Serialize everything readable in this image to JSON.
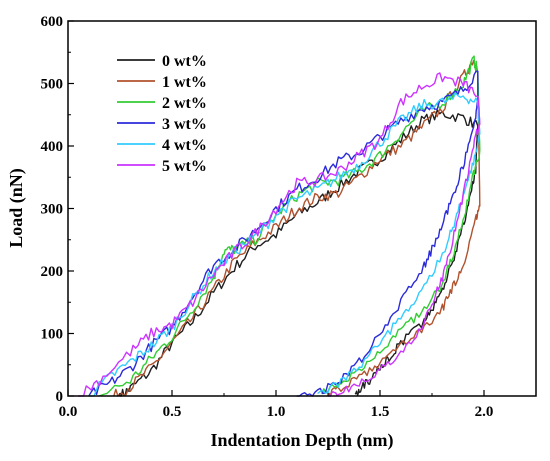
{
  "chart_data": {
    "type": "line",
    "xlabel": "Indentation Depth (nm)",
    "ylabel": "Load (nN)",
    "xlim": [
      0.0,
      2.25
    ],
    "ylim": [
      0,
      600
    ],
    "xticks": [
      "0.0",
      "0.5",
      "1.0",
      "1.5",
      "2.0"
    ],
    "yticks": [
      "0",
      "100",
      "200",
      "300",
      "400",
      "500",
      "600"
    ],
    "legend_position": "top-left",
    "grid": false,
    "series": [
      {
        "name": "0 wt%",
        "color": "#1f1f1f",
        "loading": [
          [
            0.25,
            0
          ],
          [
            0.3,
            12
          ],
          [
            0.4,
            40
          ],
          [
            0.5,
            85
          ],
          [
            0.6,
            120
          ],
          [
            0.7,
            165
          ],
          [
            0.8,
            205
          ],
          [
            0.9,
            240
          ],
          [
            1.0,
            258
          ],
          [
            1.1,
            290
          ],
          [
            1.2,
            310
          ],
          [
            1.3,
            335
          ],
          [
            1.4,
            360
          ],
          [
            1.5,
            380
          ],
          [
            1.6,
            410
          ],
          [
            1.7,
            440
          ],
          [
            1.8,
            452
          ],
          [
            1.9,
            445
          ],
          [
            1.97,
            432
          ]
        ],
        "unloading": [
          [
            1.97,
            432
          ],
          [
            1.96,
            360
          ],
          [
            1.94,
            330
          ],
          [
            1.9,
            270
          ],
          [
            1.85,
            215
          ],
          [
            1.8,
            170
          ],
          [
            1.75,
            140
          ],
          [
            1.7,
            115
          ],
          [
            1.6,
            85
          ],
          [
            1.55,
            65
          ],
          [
            1.5,
            45
          ],
          [
            1.45,
            25
          ],
          [
            1.4,
            10
          ],
          [
            1.38,
            3
          ]
        ]
      },
      {
        "name": "1 wt%",
        "color": "#b0522d",
        "loading": [
          [
            0.22,
            0
          ],
          [
            0.3,
            15
          ],
          [
            0.4,
            45
          ],
          [
            0.5,
            85
          ],
          [
            0.6,
            125
          ],
          [
            0.7,
            170
          ],
          [
            0.8,
            215
          ],
          [
            0.9,
            245
          ],
          [
            1.0,
            270
          ],
          [
            1.1,
            300
          ],
          [
            1.2,
            318
          ],
          [
            1.3,
            325
          ],
          [
            1.4,
            350
          ],
          [
            1.5,
            380
          ],
          [
            1.6,
            400
          ],
          [
            1.7,
            430
          ],
          [
            1.8,
            460
          ],
          [
            1.9,
            510
          ],
          [
            1.95,
            540
          ],
          [
            1.97,
            520
          ]
        ],
        "unloading": [
          [
            1.97,
            520
          ],
          [
            1.98,
            300
          ],
          [
            1.96,
            285
          ],
          [
            1.9,
            210
          ],
          [
            1.85,
            175
          ],
          [
            1.8,
            140
          ],
          [
            1.7,
            105
          ],
          [
            1.6,
            80
          ],
          [
            1.5,
            50
          ],
          [
            1.4,
            30
          ],
          [
            1.3,
            12
          ],
          [
            1.25,
            2
          ]
        ]
      },
      {
        "name": "2 wt%",
        "color": "#33cc33",
        "loading": [
          [
            0.15,
            0
          ],
          [
            0.3,
            25
          ],
          [
            0.4,
            60
          ],
          [
            0.5,
            95
          ],
          [
            0.6,
            140
          ],
          [
            0.7,
            190
          ],
          [
            0.75,
            232
          ],
          [
            0.8,
            235
          ],
          [
            0.9,
            250
          ],
          [
            1.0,
            290
          ],
          [
            1.1,
            320
          ],
          [
            1.2,
            340
          ],
          [
            1.3,
            345
          ],
          [
            1.4,
            360
          ],
          [
            1.5,
            385
          ],
          [
            1.6,
            420
          ],
          [
            1.7,
            455
          ],
          [
            1.8,
            470
          ],
          [
            1.9,
            500
          ],
          [
            1.95,
            538
          ],
          [
            1.97,
            520
          ]
        ],
        "unloading": [
          [
            1.97,
            520
          ],
          [
            1.98,
            390
          ],
          [
            1.95,
            355
          ],
          [
            1.9,
            280
          ],
          [
            1.85,
            225
          ],
          [
            1.8,
            180
          ],
          [
            1.7,
            135
          ],
          [
            1.6,
            105
          ],
          [
            1.5,
            75
          ],
          [
            1.4,
            40
          ],
          [
            1.3,
            18
          ],
          [
            1.22,
            3
          ]
        ]
      },
      {
        "name": "3 wt%",
        "color": "#2b2bd9",
        "loading": [
          [
            0.1,
            0
          ],
          [
            0.2,
            20
          ],
          [
            0.3,
            45
          ],
          [
            0.4,
            80
          ],
          [
            0.5,
            110
          ],
          [
            0.6,
            160
          ],
          [
            0.7,
            210
          ],
          [
            0.8,
            235
          ],
          [
            0.9,
            265
          ],
          [
            1.0,
            300
          ],
          [
            1.1,
            330
          ],
          [
            1.2,
            350
          ],
          [
            1.3,
            375
          ],
          [
            1.4,
            390
          ],
          [
            1.5,
            415
          ],
          [
            1.6,
            440
          ],
          [
            1.7,
            460
          ],
          [
            1.8,
            470
          ],
          [
            1.9,
            490
          ],
          [
            1.97,
            520
          ]
        ],
        "unloading": [
          [
            1.97,
            520
          ],
          [
            1.97,
            470
          ],
          [
            1.95,
            430
          ],
          [
            1.9,
            370
          ],
          [
            1.85,
            320
          ],
          [
            1.8,
            275
          ],
          [
            1.75,
            235
          ],
          [
            1.7,
            200
          ],
          [
            1.6,
            150
          ],
          [
            1.5,
            100
          ],
          [
            1.4,
            55
          ],
          [
            1.3,
            22
          ],
          [
            1.2,
            5
          ],
          [
            1.1,
            0
          ]
        ]
      },
      {
        "name": "4 wt%",
        "color": "#33ccff",
        "loading": [
          [
            0.1,
            0
          ],
          [
            0.2,
            30
          ],
          [
            0.3,
            55
          ],
          [
            0.4,
            80
          ],
          [
            0.5,
            110
          ],
          [
            0.6,
            155
          ],
          [
            0.7,
            200
          ],
          [
            0.8,
            230
          ],
          [
            0.9,
            255
          ],
          [
            1.0,
            290
          ],
          [
            1.1,
            315
          ],
          [
            1.2,
            330
          ],
          [
            1.3,
            350
          ],
          [
            1.4,
            370
          ],
          [
            1.5,
            405
          ],
          [
            1.6,
            440
          ],
          [
            1.7,
            465
          ],
          [
            1.8,
            470
          ],
          [
            1.9,
            480
          ],
          [
            1.97,
            470
          ]
        ],
        "unloading": [
          [
            1.97,
            470
          ],
          [
            1.98,
            420
          ],
          [
            1.95,
            375
          ],
          [
            1.9,
            320
          ],
          [
            1.85,
            270
          ],
          [
            1.8,
            225
          ],
          [
            1.7,
            165
          ],
          [
            1.6,
            125
          ],
          [
            1.5,
            85
          ],
          [
            1.4,
            45
          ],
          [
            1.3,
            20
          ],
          [
            1.2,
            4
          ]
        ]
      },
      {
        "name": "5 wt%",
        "color": "#cc33ff",
        "loading": [
          [
            0.05,
            0
          ],
          [
            0.15,
            25
          ],
          [
            0.3,
            70
          ],
          [
            0.4,
            100
          ],
          [
            0.5,
            115
          ],
          [
            0.6,
            150
          ],
          [
            0.7,
            195
          ],
          [
            0.8,
            230
          ],
          [
            0.9,
            260
          ],
          [
            1.0,
            300
          ],
          [
            1.1,
            340
          ],
          [
            1.2,
            345
          ],
          [
            1.3,
            360
          ],
          [
            1.4,
            385
          ],
          [
            1.5,
            410
          ],
          [
            1.6,
            470
          ],
          [
            1.7,
            495
          ],
          [
            1.8,
            510
          ],
          [
            1.9,
            500
          ],
          [
            1.97,
            480
          ]
        ],
        "unloading": [
          [
            1.97,
            480
          ],
          [
            1.98,
            440
          ],
          [
            1.95,
            400
          ],
          [
            1.9,
            320
          ],
          [
            1.85,
            250
          ],
          [
            1.8,
            190
          ],
          [
            1.75,
            150
          ],
          [
            1.7,
            110
          ],
          [
            1.6,
            70
          ],
          [
            1.5,
            40
          ],
          [
            1.4,
            20
          ],
          [
            1.3,
            5
          ],
          [
            1.25,
            0
          ]
        ]
      }
    ]
  }
}
